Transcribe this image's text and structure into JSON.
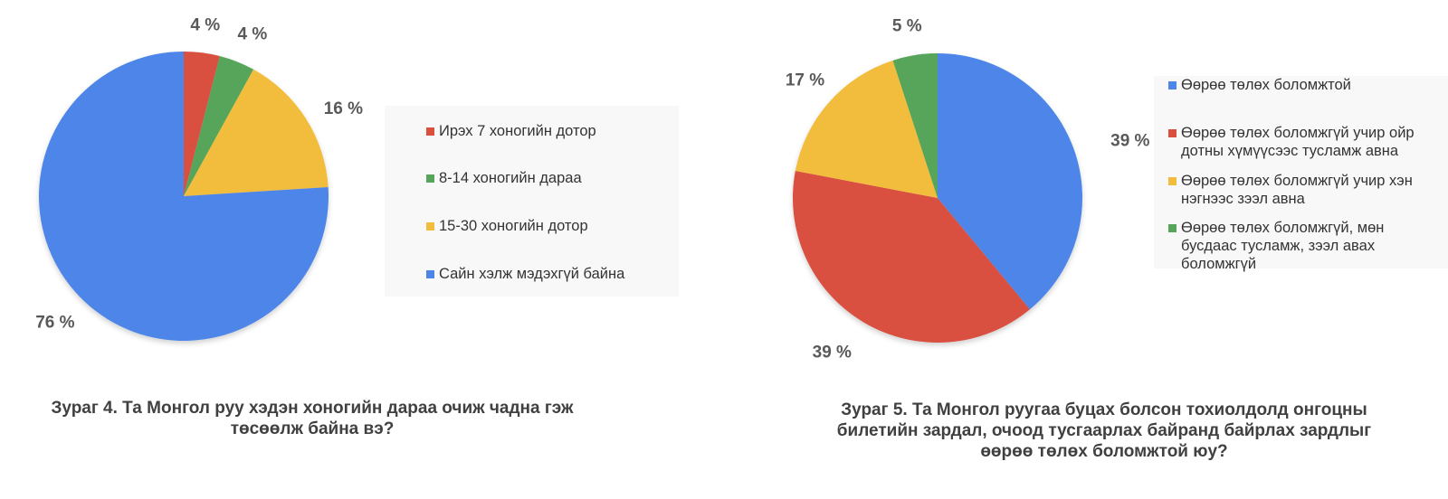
{
  "colors": {
    "blue": "#4e86e8",
    "red": "#d9503f",
    "green": "#56a55a",
    "yellow": "#f2bc3c"
  },
  "chart_data": [
    {
      "type": "pie",
      "caption": "Зураг 4. Та Монгол руу хэдэн хоногийн дараа очиж чадна гэж төсөөлж байна вэ?",
      "start_angle_deg": 0,
      "direction": "clockwise",
      "legend_position": "right",
      "slices": [
        {
          "label": "Ирэх 7 хоногийн дотор",
          "value": 4,
          "value_label": "4 %",
          "color": "#d9503f"
        },
        {
          "label": "8-14 хоногийн дараа",
          "value": 4,
          "value_label": "4 %",
          "color": "#56a55a"
        },
        {
          "label": "15-30 хоногийн дотор",
          "value": 16,
          "value_label": "16 %",
          "color": "#f2bc3c"
        },
        {
          "label": "Сайн хэлж мэдэхгүй байна",
          "value": 76,
          "value_label": "76 %",
          "color": "#4e86e8"
        }
      ]
    },
    {
      "type": "pie",
      "caption": "Зураг 5. Та Монгол руугаа буцах болсон тохиолдолд онгоцны билетийн зардал, очоод тусгаарлах байранд байрлах зардлыг өөрөө төлөх боломжтой юу?",
      "start_angle_deg": 0,
      "direction": "clockwise",
      "legend_position": "right",
      "slices": [
        {
          "label": "Өөрөө төлөх боломжтой",
          "value": 39,
          "value_label": "39 %",
          "color": "#4e86e8"
        },
        {
          "label": "Өөрөө төлөх боломжгүй учир ойр дотны хүмүүсээс тусламж авна",
          "value": 39,
          "value_label": "39 %",
          "color": "#d9503f"
        },
        {
          "label": "Өөрөө төлөх боломжгүй учир хэн нэгнээс зээл авна",
          "value": 17,
          "value_label": "17 %",
          "color": "#f2bc3c"
        },
        {
          "label": "Өөрөө төлөх боломжгүй, мөн бусдаас тусламж, зээл авах боломжгүй",
          "value": 5,
          "value_label": "5 %",
          "color": "#56a55a"
        }
      ]
    }
  ]
}
